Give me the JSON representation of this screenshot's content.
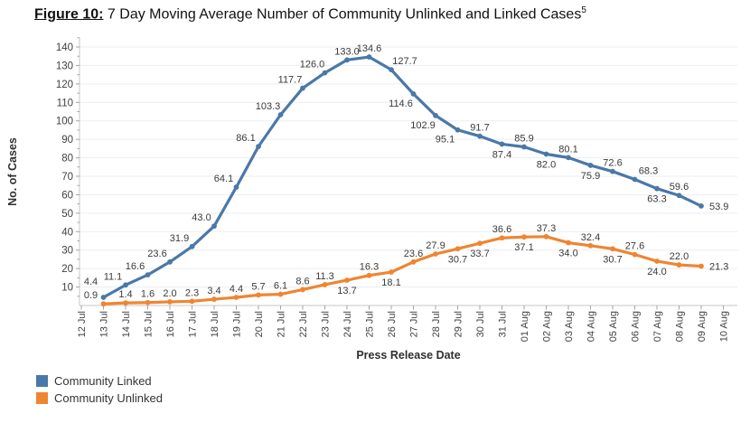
{
  "title": {
    "prefix": "Figure 10:",
    "text": " 7 Day Moving Average Number of Community Unlinked and Linked Cases",
    "superscript": "5"
  },
  "chart_data": {
    "type": "line",
    "x": [
      "12 Jul",
      "13 Jul",
      "14 Jul",
      "15 Jul",
      "16 Jul",
      "17 Jul",
      "18 Jul",
      "19 Jul",
      "20 Jul",
      "21 Jul",
      "22 Jul",
      "23 Jul",
      "24 Jul",
      "25 Jul",
      "26 Jul",
      "27 Jul",
      "28 Jul",
      "29 Jul",
      "30 Jul",
      "31 Jul",
      "01 Aug",
      "02 Aug",
      "03 Aug",
      "04 Aug",
      "05 Aug",
      "06 Aug",
      "07 Aug",
      "08 Aug",
      "09 Aug",
      "10 Aug"
    ],
    "xlabel": "Press Release Date",
    "ylabel": "No. of Cases",
    "ylim": [
      0,
      145
    ],
    "ytick_step": 10,
    "ytick_max": 140,
    "grid": true,
    "legend_position": "bottom-left",
    "series": [
      {
        "name": "Community Linked",
        "color": "#4a78a8",
        "start_index": 1,
        "values": [
          4.4,
          11.1,
          16.6,
          23.6,
          31.9,
          43.0,
          64.1,
          86.1,
          103.3,
          117.7,
          126.0,
          133.0,
          134.6,
          127.7,
          114.6,
          102.9,
          95.1,
          91.7,
          87.4,
          85.9,
          82.0,
          80.1,
          75.9,
          72.6,
          68.3,
          63.3,
          59.6,
          53.9
        ],
        "label_pos": [
          "alh",
          "al",
          "al",
          "al",
          "al",
          "al",
          "al",
          "al",
          "al",
          "al",
          "al",
          "a",
          "a",
          "ar",
          "bl",
          "bl",
          "bl",
          "a",
          "b",
          "a",
          "b",
          "a",
          "b",
          "a",
          "ar",
          "b",
          "a",
          "r"
        ]
      },
      {
        "name": "Community Unlinked",
        "color": "#ef8531",
        "start_index": 1,
        "values": [
          0.9,
          1.4,
          1.6,
          2.0,
          2.3,
          3.4,
          4.4,
          5.7,
          6.1,
          8.6,
          11.3,
          13.7,
          16.3,
          18.1,
          23.6,
          27.9,
          30.7,
          33.7,
          36.6,
          37.1,
          37.3,
          34.0,
          32.4,
          30.7,
          27.6,
          24.0,
          22.0,
          21.3
        ],
        "label_pos": [
          "al",
          "a",
          "a",
          "a",
          "a",
          "a",
          "a",
          "a",
          "a",
          "a",
          "a",
          "b",
          "a",
          "b",
          "a",
          "a",
          "b",
          "b",
          "a",
          "b",
          "a",
          "b",
          "a",
          "b",
          "a",
          "b",
          "a",
          "r"
        ]
      }
    ]
  }
}
